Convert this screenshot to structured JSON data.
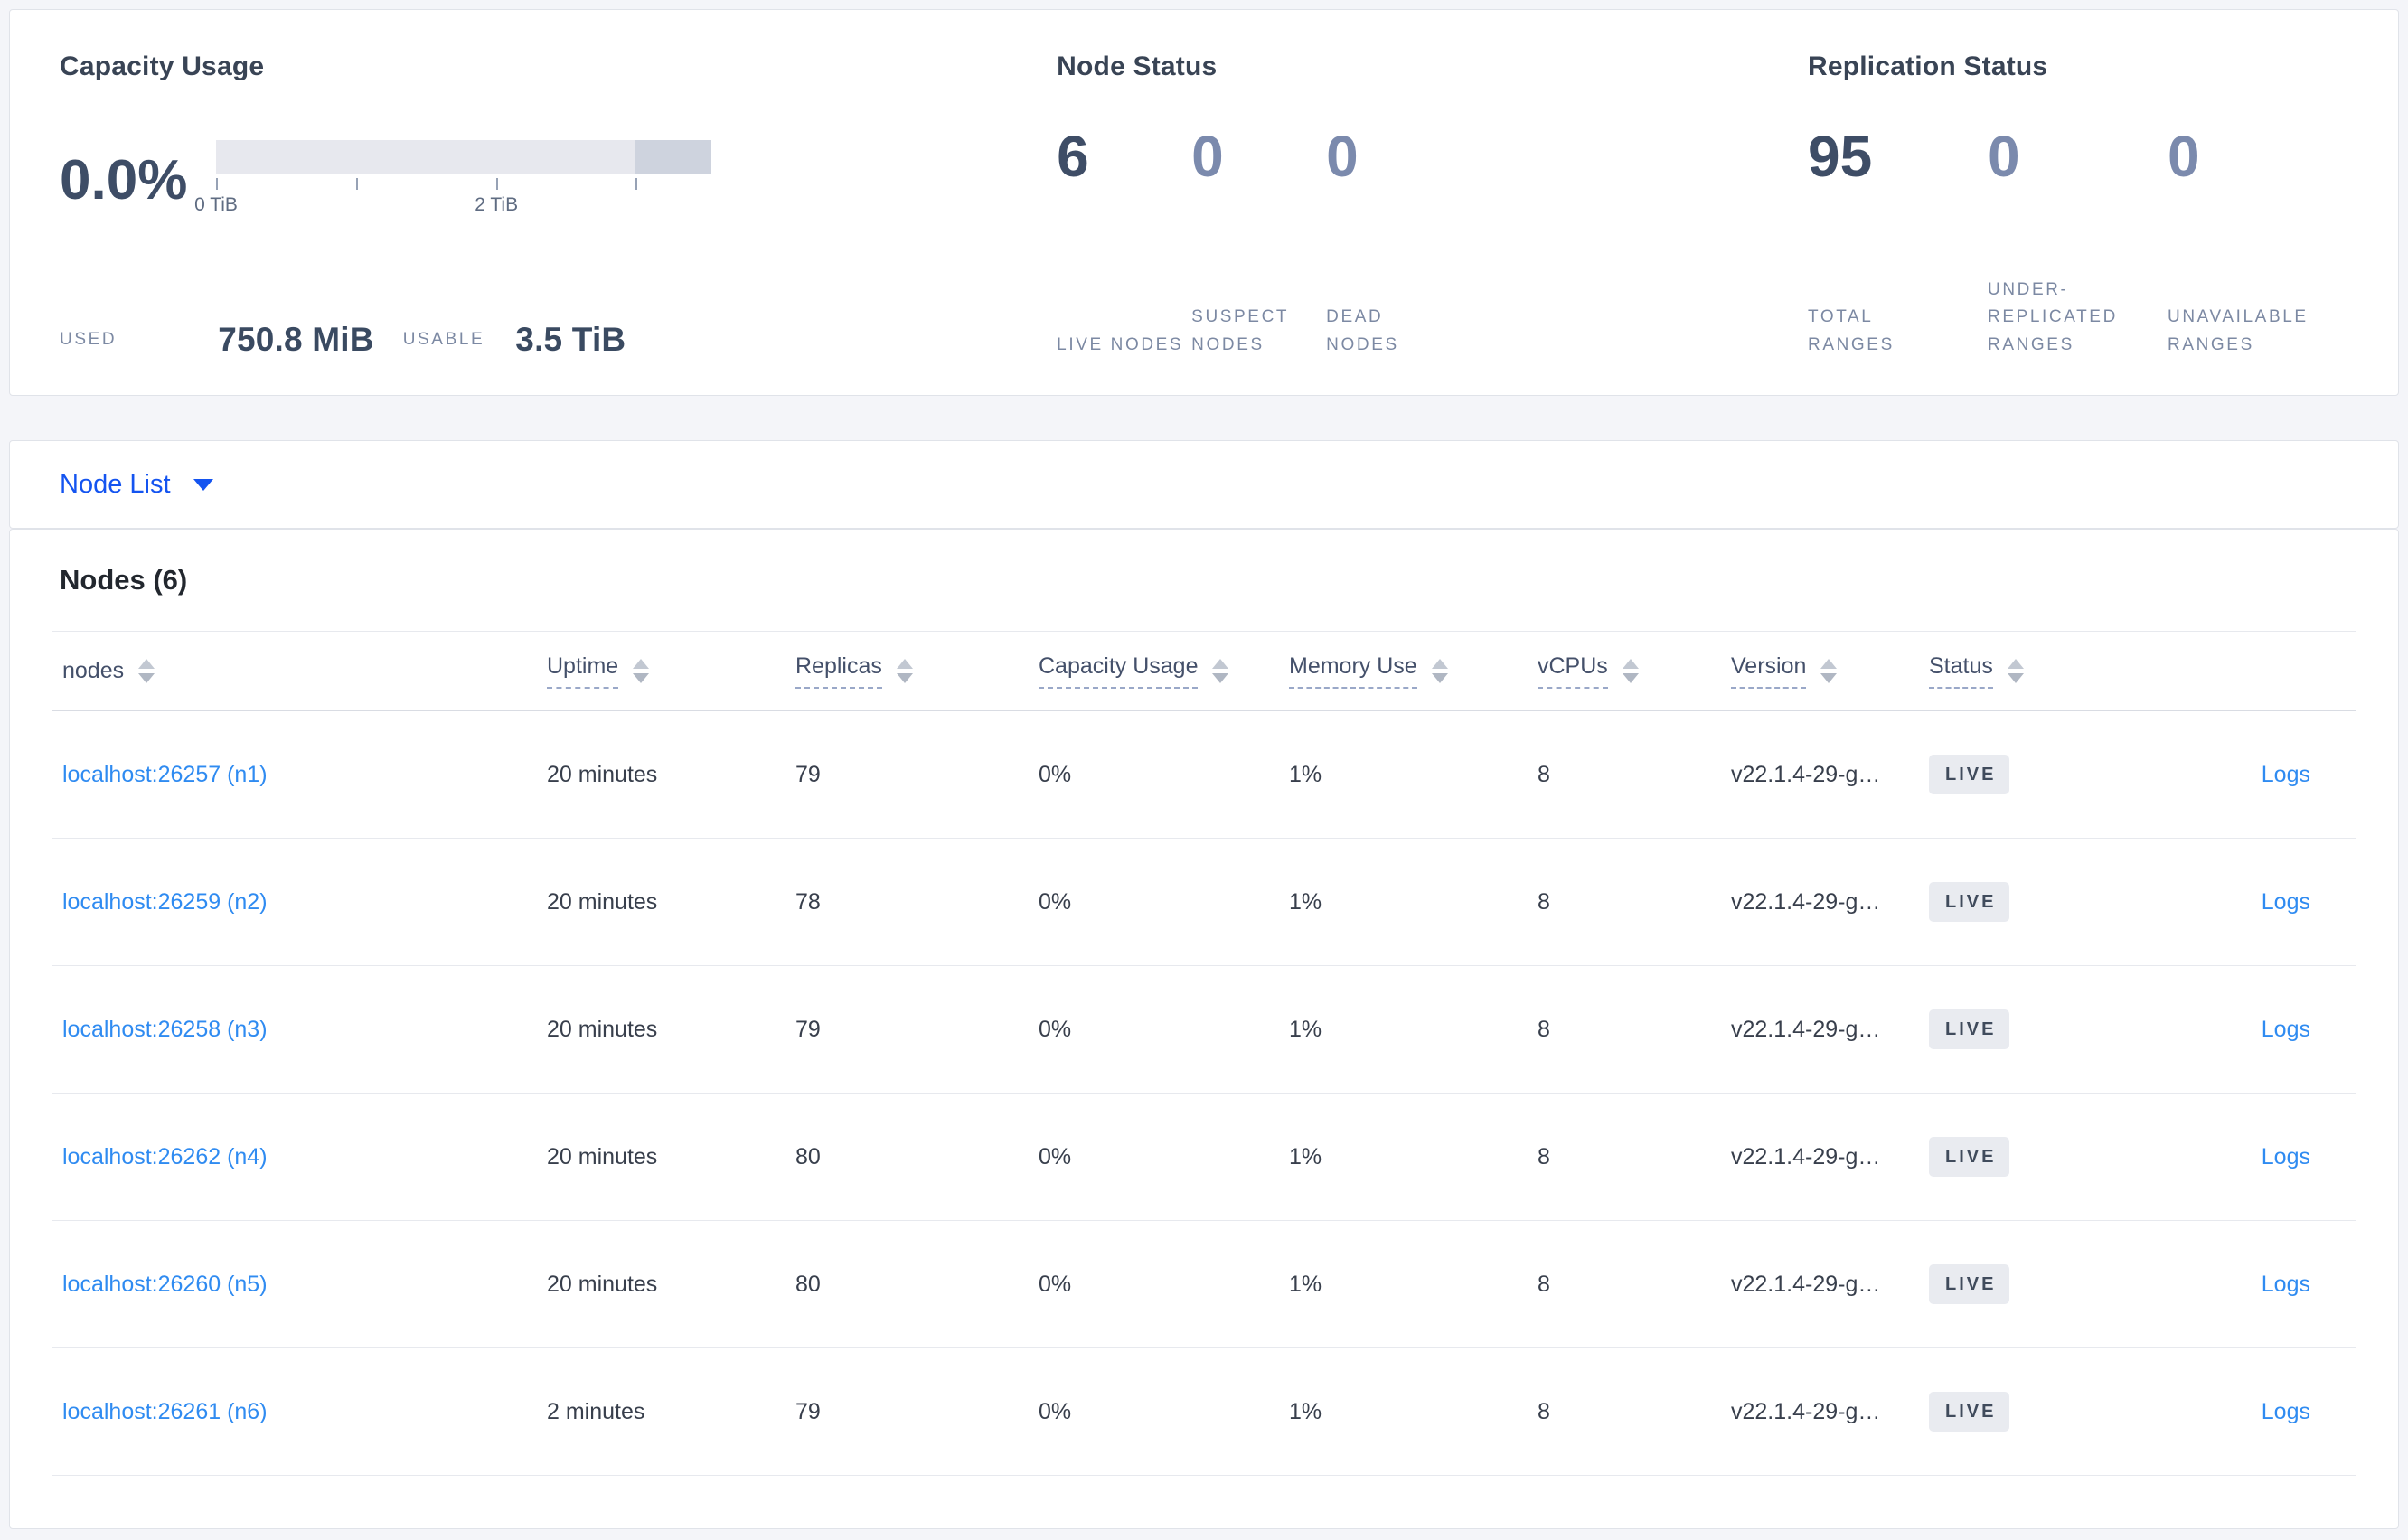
{
  "summary": {
    "capacity": {
      "title": "Capacity Usage",
      "percent_used": "0.0%",
      "bar": {
        "tick_positions_pct": [
          0,
          28.3,
          56.6,
          84.7
        ],
        "dark_segment_start_pct": 84.7,
        "tick_labels": [
          {
            "text": "0 TiB",
            "position_pct": 0
          },
          {
            "text": "2 TiB",
            "position_pct": 56.6
          }
        ]
      },
      "used_label": "USED",
      "used_value": "750.8 MiB",
      "usable_label": "USABLE",
      "usable_value": "3.5 TiB"
    },
    "node_status": {
      "title": "Node Status",
      "stats": [
        {
          "value": "6",
          "label": "LIVE NODES"
        },
        {
          "value": "0",
          "label": "SUSPECT NODES"
        },
        {
          "value": "0",
          "label": "DEAD NODES"
        }
      ]
    },
    "replication_status": {
      "title": "Replication Status",
      "stats": [
        {
          "value": "95",
          "label": "TOTAL RANGES"
        },
        {
          "value": "0",
          "label": "UNDER-REPLICATED RANGES"
        },
        {
          "value": "0",
          "label": "UNAVAILABLE RANGES"
        }
      ]
    }
  },
  "node_list_dropdown": {
    "label": "Node List"
  },
  "nodes_table": {
    "title": "Nodes (6)",
    "columns": [
      {
        "label": "nodes",
        "sortable_underline": false
      },
      {
        "label": "Uptime",
        "sortable_underline": true
      },
      {
        "label": "Replicas",
        "sortable_underline": true
      },
      {
        "label": "Capacity Usage",
        "sortable_underline": true
      },
      {
        "label": "Memory Use",
        "sortable_underline": true
      },
      {
        "label": "vCPUs",
        "sortable_underline": true
      },
      {
        "label": "Version",
        "sortable_underline": true
      },
      {
        "label": "Status",
        "sortable_underline": true
      }
    ],
    "rows": [
      {
        "node": "localhost:26257 (n1)",
        "uptime": "20 minutes",
        "replicas": "79",
        "capacity_usage": "0%",
        "memory_use": "1%",
        "vcpus": "8",
        "version": "v22.1.4-29-g…",
        "status": "LIVE",
        "logs": "Logs"
      },
      {
        "node": "localhost:26259 (n2)",
        "uptime": "20 minutes",
        "replicas": "78",
        "capacity_usage": "0%",
        "memory_use": "1%",
        "vcpus": "8",
        "version": "v22.1.4-29-g…",
        "status": "LIVE",
        "logs": "Logs"
      },
      {
        "node": "localhost:26258 (n3)",
        "uptime": "20 minutes",
        "replicas": "79",
        "capacity_usage": "0%",
        "memory_use": "1%",
        "vcpus": "8",
        "version": "v22.1.4-29-g…",
        "status": "LIVE",
        "logs": "Logs"
      },
      {
        "node": "localhost:26262 (n4)",
        "uptime": "20 minutes",
        "replicas": "80",
        "capacity_usage": "0%",
        "memory_use": "1%",
        "vcpus": "8",
        "version": "v22.1.4-29-g…",
        "status": "LIVE",
        "logs": "Logs"
      },
      {
        "node": "localhost:26260 (n5)",
        "uptime": "20 minutes",
        "replicas": "80",
        "capacity_usage": "0%",
        "memory_use": "1%",
        "vcpus": "8",
        "version": "v22.1.4-29-g…",
        "status": "LIVE",
        "logs": "Logs"
      },
      {
        "node": "localhost:26261 (n6)",
        "uptime": "2 minutes",
        "replicas": "79",
        "capacity_usage": "0%",
        "memory_use": "1%",
        "vcpus": "8",
        "version": "v22.1.4-29-g…",
        "status": "LIVE",
        "logs": "Logs"
      }
    ]
  },
  "colors": {
    "link_blue": "#2f8bf1",
    "dropdown_blue": "#1454f0",
    "accent_dark": "#3e4d66",
    "muted_stat": "#7b8aad",
    "badge_bg": "#e9ebf0",
    "badge_text": "#404b5c",
    "bar_light": "#e7e8ee",
    "bar_dark": "#ced3de"
  }
}
